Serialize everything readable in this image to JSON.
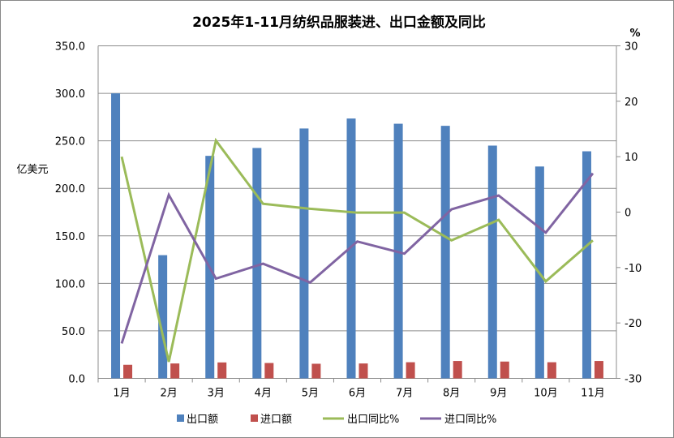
{
  "chart_data": {
    "type": "bar",
    "title": "2025年1-11月纺织品服装进、出口金额及同比",
    "ylabel": "亿美元",
    "y2label": "%",
    "categories": [
      "1月",
      "2月",
      "3月",
      "4月",
      "5月",
      "6月",
      "7月",
      "8月",
      "9月",
      "10月",
      "11月"
    ],
    "ylim": [
      0,
      350
    ],
    "y2lim": [
      -30,
      30
    ],
    "yticks": [
      "0.0",
      "50.0",
      "100.0",
      "150.0",
      "200.0",
      "250.0",
      "300.0",
      "350.0"
    ],
    "y2ticks": [
      "-30",
      "-20",
      "-10",
      "0",
      "10",
      "20",
      "30"
    ],
    "grid": true,
    "legend_position": "bottom",
    "series": [
      {
        "name": "出口额",
        "type": "bar",
        "axis": "left",
        "color": "#4f81bd",
        "values": [
          300,
          129.7,
          234.2,
          242.5,
          263,
          273.5,
          268,
          265.8,
          245,
          223,
          239
        ]
      },
      {
        "name": "进口额",
        "type": "bar",
        "axis": "left",
        "color": "#c0504d",
        "values": [
          14.3,
          15.7,
          16.8,
          16.2,
          15.4,
          15.7,
          17,
          18.3,
          17.7,
          17,
          18.3
        ]
      },
      {
        "name": "出口同比%",
        "type": "line",
        "axis": "right",
        "color": "#9bbb59",
        "values": [
          10.0,
          -27.0,
          12.9,
          1.5,
          0.6,
          -0.1,
          -0.1,
          -5.1,
          -1.4,
          -12.5,
          -5.1
        ]
      },
      {
        "name": "进口同比%",
        "type": "line",
        "axis": "right",
        "color": "#8064a2",
        "values": [
          -23.7,
          3.1,
          -12.0,
          -9.3,
          -12.7,
          -5.3,
          -7.5,
          0.5,
          3.0,
          -3.7,
          7.0
        ]
      }
    ]
  }
}
